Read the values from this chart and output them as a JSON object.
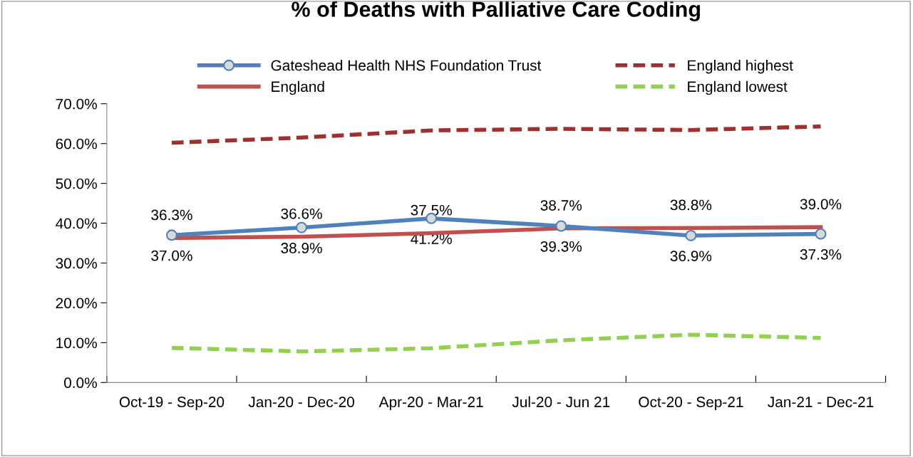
{
  "chart_data": {
    "type": "line",
    "title": "% of Deaths with Palliative Care Coding",
    "categories": [
      "Oct-19 - Sep-20",
      "Jan-20 - Dec-20",
      "Apr-20 - Mar-21",
      "Jul-20 - Jun 21",
      "Oct-20 - Sep-21",
      "Jan-21 - Dec-21"
    ],
    "series": [
      {
        "name": "Gateshead Health NHS Foundation Trust",
        "color": "#4f81bd",
        "marker": "circle",
        "line_style": "solid",
        "values": [
          37.0,
          38.9,
          41.2,
          39.3,
          36.9,
          37.3
        ],
        "value_labels": [
          "37.0%",
          "38.9%",
          "41.2%",
          "39.3%",
          "36.9%",
          "37.3%"
        ]
      },
      {
        "name": "England",
        "color": "#c0504d",
        "marker": "none",
        "line_style": "solid",
        "values": [
          36.3,
          36.6,
          37.5,
          38.7,
          38.8,
          39.0
        ],
        "value_labels": [
          "36.3%",
          "36.6%",
          "37.5%",
          "38.7%",
          "38.8%",
          "39.0%"
        ]
      },
      {
        "name": "England highest",
        "color": "#a0302d",
        "marker": "none",
        "line_style": "dashed",
        "values": [
          60.2,
          61.5,
          63.3,
          63.7,
          63.4,
          64.3
        ]
      },
      {
        "name": "England lowest",
        "color": "#92d050",
        "marker": "none",
        "line_style": "dashed",
        "values": [
          8.7,
          7.8,
          8.6,
          10.6,
          12.0,
          11.2
        ]
      }
    ],
    "ylim": [
      0,
      70
    ],
    "yticks": [
      {
        "value": 0,
        "label": "0.0%"
      },
      {
        "value": 10,
        "label": "10.0%"
      },
      {
        "value": 20,
        "label": "20.0%"
      },
      {
        "value": 30,
        "label": "30.0%"
      },
      {
        "value": 40,
        "label": "40.0%"
      },
      {
        "value": 50,
        "label": "50.0%"
      },
      {
        "value": 60,
        "label": "60.0%"
      },
      {
        "value": 70,
        "label": "70.0%"
      }
    ],
    "grid": false,
    "legend": "top"
  }
}
